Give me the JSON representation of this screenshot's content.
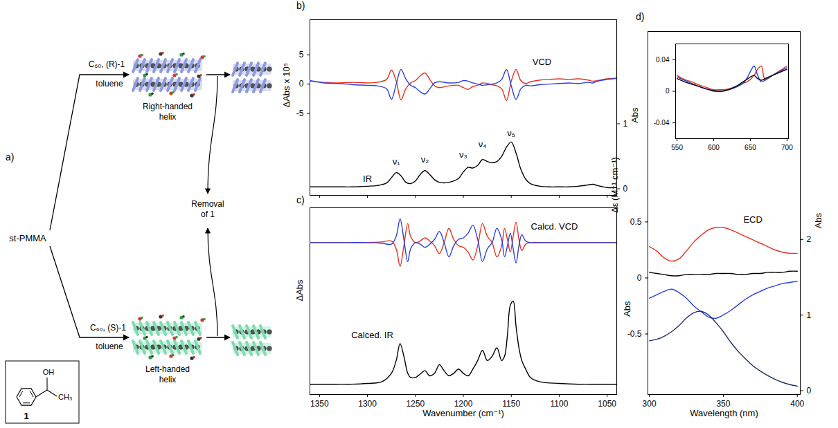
{
  "scheme": {
    "label": "a)",
    "start": "st-PMMA",
    "upper": {
      "reagent": "C₆₀, (R)-1",
      "solvent": "toluene",
      "product": "Right-handed helix",
      "color": "#8e9be0"
    },
    "lower": {
      "reagent": "C₆₀, (S)-1",
      "solvent": "toluene",
      "product": "Left-handed helix",
      "color": "#7ddcb0"
    },
    "removal": "Removal of 1",
    "compound": {
      "label": "1",
      "groups": [
        "OH",
        "CH₃"
      ]
    }
  },
  "chart_data": [
    {
      "panel": "b)",
      "type": "line",
      "y_label": "ΔAbs x 10⁵",
      "y2_label": "Abs",
      "xlim": [
        1360,
        1040
      ],
      "xticks": [
        1350,
        1300,
        1250,
        1200,
        1150,
        1100,
        1050
      ],
      "ylim": [
        -19,
        11
      ],
      "yticks": [
        -5,
        0,
        5
      ],
      "y2lim": [
        -0.1,
        2.6
      ],
      "y2ticks": [
        0,
        1
      ],
      "tick_labels": "y",
      "x": [
        1360,
        1345,
        1330,
        1315,
        1300,
        1290,
        1280,
        1275,
        1270,
        1265,
        1260,
        1255,
        1250,
        1245,
        1240,
        1235,
        1230,
        1225,
        1215,
        1205,
        1200,
        1195,
        1190,
        1185,
        1180,
        1175,
        1170,
        1165,
        1160,
        1155,
        1150,
        1145,
        1140,
        1135,
        1130,
        1120,
        1110,
        1100,
        1090,
        1080,
        1070,
        1065,
        1060,
        1050,
        1040
      ],
      "series": [
        {
          "color": "#e8301c",
          "values": [
            0.5,
            0.3,
            0.2,
            0.3,
            0.2,
            0.3,
            0.8,
            2.4,
            0.5,
            -2.7,
            -0.8,
            0.2,
            0.6,
            1.4,
            1.9,
            0.8,
            -0.3,
            -0.6,
            -0.3,
            -0.2,
            -0.6,
            -0.9,
            -0.4,
            -0.2,
            0.2,
            0.1,
            -0.1,
            -0.3,
            -0.8,
            -2.8,
            0.5,
            2.5,
            0.6,
            0.1,
            0.4,
            0.7,
            0.8,
            0.9,
            0.8,
            0.9,
            0.7,
            0.5,
            0.6,
            0.9,
            1.0
          ]
        },
        {
          "color": "#2a3fe0",
          "values": [
            0.6,
            0.2,
            0.1,
            -0.1,
            -0.2,
            -0.3,
            -0.8,
            -2.6,
            0,
            2.5,
            0.9,
            -0.2,
            -0.6,
            -1.3,
            -1.7,
            -0.8,
            0.2,
            0.4,
            0.2,
            0.3,
            0.6,
            0.5,
            0.2,
            0,
            -0.2,
            -0.1,
            0,
            0.2,
            0.8,
            2.5,
            -0.3,
            -2.6,
            -0.8,
            -0.2,
            -0.3,
            -0.1,
            0,
            0.1,
            0.2,
            0.1,
            0.3,
            0.2,
            0.5,
            0.8,
            1.0
          ]
        },
        {
          "color": "#000000",
          "axis": "y2",
          "values": [
            0.03,
            0.03,
            0.03,
            0.03,
            0.04,
            0.05,
            0.09,
            0.17,
            0.25,
            0.2,
            0.1,
            0.08,
            0.12,
            0.22,
            0.28,
            0.22,
            0.14,
            0.1,
            0.1,
            0.16,
            0.26,
            0.33,
            0.32,
            0.36,
            0.45,
            0.42,
            0.4,
            0.42,
            0.5,
            0.64,
            0.72,
            0.55,
            0.3,
            0.15,
            0.08,
            0.04,
            0.03,
            0.03,
            0.03,
            0.04,
            0.06,
            0.07,
            0.05,
            0.02,
            0.02
          ]
        }
      ],
      "annotations": [
        {
          "text": "VCD",
          "x": 1118,
          "y": 3.8
        },
        {
          "text": "IR",
          "x": 1300,
          "y": 0.15,
          "axis": "y2"
        },
        {
          "text": "ν₁",
          "x": 1270,
          "y": 0.42,
          "axis": "y2"
        },
        {
          "text": "ν₂",
          "x": 1240,
          "y": 0.45,
          "axis": "y2"
        },
        {
          "text": "ν₃",
          "x": 1200,
          "y": 0.52,
          "axis": "y2"
        },
        {
          "text": "ν₄",
          "x": 1180,
          "y": 0.68,
          "axis": "y2"
        },
        {
          "text": "ν₅",
          "x": 1150,
          "y": 0.85,
          "axis": "y2"
        }
      ]
    },
    {
      "panel": "c)",
      "type": "line",
      "x_label": "Wavenumber (cm⁻¹)",
      "y_label": "ΔAbs",
      "y2_label": "Abs",
      "xlim": [
        1360,
        1040
      ],
      "xticks": [
        1350,
        1300,
        1250,
        1200,
        1150,
        1100,
        1050
      ],
      "ylim": [
        -4.8,
        1.1
      ],
      "y2lim": [
        -0.1,
        2.1
      ],
      "tick_labels": "x",
      "x": [
        1360,
        1340,
        1320,
        1300,
        1285,
        1275,
        1270,
        1266,
        1262,
        1258,
        1255,
        1250,
        1245,
        1240,
        1235,
        1230,
        1225,
        1220,
        1215,
        1210,
        1205,
        1200,
        1195,
        1190,
        1185,
        1180,
        1175,
        1170,
        1165,
        1160,
        1157,
        1154,
        1151,
        1148,
        1145,
        1142,
        1139,
        1135,
        1130,
        1120,
        1100,
        1080,
        1060,
        1040
      ],
      "series": [
        {
          "color": "#e8301c",
          "values": [
            0,
            0,
            0,
            0,
            0.02,
            0.05,
            -0.2,
            -0.75,
            -0.1,
            0.6,
            0.2,
            0,
            0.05,
            0.15,
            0.05,
            -0.1,
            -0.35,
            0,
            0.45,
            0.1,
            -0.1,
            -0.15,
            -0.3,
            -0.55,
            -0.1,
            0.6,
            0.2,
            0,
            -0.45,
            -0.1,
            0.45,
            0.1,
            -0.3,
            0.2,
            0.65,
            0.1,
            -0.25,
            -0.05,
            0,
            0,
            0,
            0,
            0,
            0
          ]
        },
        {
          "color": "#2a3fe0",
          "values": [
            0,
            0,
            0,
            0,
            -0.02,
            -0.05,
            0.2,
            0.75,
            0.1,
            -0.6,
            -0.2,
            0,
            -0.05,
            -0.15,
            -0.05,
            0.1,
            0.35,
            0,
            -0.45,
            -0.1,
            0.1,
            0.15,
            0.3,
            0.55,
            0.1,
            -0.6,
            -0.2,
            0,
            0.45,
            0.1,
            -0.45,
            -0.1,
            0.3,
            -0.2,
            -0.65,
            -0.1,
            0.25,
            0.05,
            0,
            0,
            0,
            0,
            0,
            0
          ]
        },
        {
          "color": "#000000",
          "axis": "y2",
          "values": [
            0.02,
            0.02,
            0.02,
            0.03,
            0.05,
            0.15,
            0.3,
            0.5,
            0.35,
            0.15,
            0.1,
            0.1,
            0.14,
            0.18,
            0.12,
            0.15,
            0.25,
            0.18,
            0.12,
            0.15,
            0.2,
            0.15,
            0.12,
            0.2,
            0.3,
            0.42,
            0.3,
            0.35,
            0.45,
            0.3,
            0.35,
            0.6,
            0.95,
            1.0,
            0.7,
            0.45,
            0.3,
            0.2,
            0.1,
            0.05,
            0.03,
            0.02,
            0.02,
            0.02
          ]
        }
      ],
      "annotations": [
        {
          "text": "Calcd. VCD",
          "x": 1105,
          "y": 0.5
        },
        {
          "text": "Calced. IR",
          "x": 1295,
          "y": 0.6,
          "axis": "y2"
        }
      ]
    },
    {
      "panel": "d)",
      "type": "line",
      "x_label": "Wavelength (nm)",
      "y_label": "Δε (M⁻¹ cm⁻¹)",
      "y2_label": "Abs",
      "xlim": [
        299,
        402
      ],
      "xticks": [
        300,
        350,
        400
      ],
      "ylim": [
        -1.04,
        2.2
      ],
      "yticks": [
        -0.5,
        0,
        0.5
      ],
      "y2lim": [
        -0.05,
        4.75
      ],
      "y2ticks": [
        0,
        1,
        2
      ],
      "x": [
        300,
        305,
        310,
        315,
        320,
        325,
        330,
        335,
        340,
        345,
        350,
        355,
        360,
        365,
        370,
        375,
        380,
        385,
        390,
        395,
        400
      ],
      "series": [
        {
          "color": "#e8301c",
          "values": [
            0.28,
            0.24,
            0.18,
            0.15,
            0.17,
            0.24,
            0.32,
            0.38,
            0.43,
            0.45,
            0.45,
            0.43,
            0.4,
            0.37,
            0.34,
            0.31,
            0.28,
            0.25,
            0.23,
            0.22,
            0.22
          ]
        },
        {
          "color": "#000000",
          "values": [
            0.05,
            0.04,
            0.03,
            0.02,
            0.02,
            0.03,
            0.03,
            0.03,
            0.03,
            0.04,
            0.04,
            0.04,
            0.03,
            0.03,
            0.04,
            0.04,
            0.05,
            0.05,
            0.05,
            0.06,
            0.06
          ]
        },
        {
          "color": "#2a3fe0",
          "values": [
            -0.18,
            -0.15,
            -0.12,
            -0.1,
            -0.13,
            -0.18,
            -0.25,
            -0.3,
            -0.35,
            -0.36,
            -0.33,
            -0.29,
            -0.24,
            -0.19,
            -0.15,
            -0.12,
            -0.09,
            -0.07,
            -0.05,
            -0.04,
            -0.03
          ]
        },
        {
          "color": "#1c2a6e",
          "axis": "y2",
          "values": [
            0.66,
            0.68,
            0.72,
            0.78,
            0.86,
            0.96,
            1.03,
            1.05,
            1.0,
            0.9,
            0.78,
            0.64,
            0.52,
            0.42,
            0.33,
            0.26,
            0.2,
            0.15,
            0.11,
            0.08,
            0.06
          ]
        }
      ],
      "annotations": [
        {
          "text": "ECD",
          "x": 370,
          "y": 0.52
        }
      ]
    },
    {
      "type": "line",
      "xlim": [
        548,
        702
      ],
      "xticks": [
        550,
        600,
        650,
        700
      ],
      "ylim": [
        -0.06,
        0.06
      ],
      "yticks": [
        -0.04,
        0,
        0.04
      ],
      "x": [
        550,
        560,
        570,
        580,
        590,
        600,
        610,
        620,
        630,
        640,
        645,
        650,
        655,
        660,
        665,
        670,
        680,
        690,
        700
      ],
      "series": [
        {
          "color": "#e8301c",
          "values": [
            0.02,
            0.015,
            0.012,
            0.008,
            0.005,
            0.002,
            0.002,
            0.003,
            0.006,
            0.01,
            0.012,
            0.015,
            0.02,
            0.028,
            0.032,
            0.015,
            0.02,
            0.026,
            0.032
          ]
        },
        {
          "color": "#2a3fe0",
          "values": [
            0.018,
            0.014,
            0.01,
            0.006,
            0.003,
            0.0,
            0.0,
            0.002,
            0.005,
            0.01,
            0.016,
            0.025,
            0.032,
            0.02,
            0.012,
            0.014,
            0.02,
            0.025,
            0.03
          ]
        },
        {
          "color": "#000000",
          "values": [
            0.016,
            0.012,
            0.009,
            0.006,
            0.003,
            0.001,
            0.0,
            0.002,
            0.006,
            0.012,
            0.015,
            0.018,
            0.02,
            0.016,
            0.014,
            0.016,
            0.02,
            0.024,
            0.028
          ]
        }
      ]
    }
  ]
}
